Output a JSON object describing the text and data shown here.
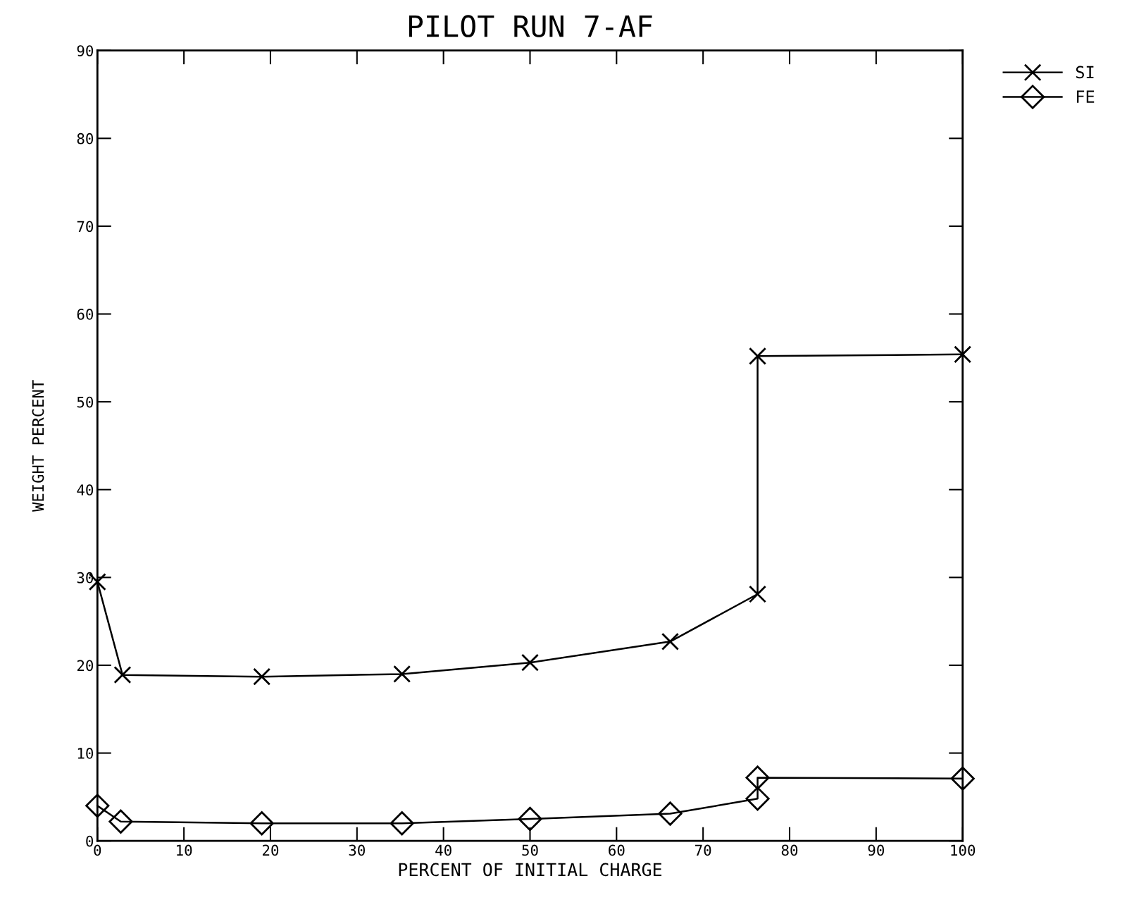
{
  "chart_data": {
    "type": "line",
    "title": "PILOT RUN 7-AF",
    "xlabel": "PERCENT OF INITIAL CHARGE",
    "ylabel": "WEIGHT PERCENT",
    "series": [
      {
        "name": "SI",
        "color": "#000000",
        "marker": "cross",
        "x": [
          0,
          2.9,
          19.0,
          35.2,
          50.0,
          66.2,
          76.3,
          76.3,
          100
        ],
        "values": [
          29.5,
          18.9,
          18.7,
          19.0,
          20.3,
          22.7,
          28.1,
          55.2,
          55.4
        ]
      },
      {
        "name": "FE",
        "color": "#000000",
        "marker": "diamond",
        "x": [
          0,
          2.7,
          19.0,
          35.2,
          50.0,
          66.2,
          76.3,
          76.3,
          100
        ],
        "values": [
          4.0,
          2.2,
          2.0,
          2.0,
          2.5,
          3.1,
          4.8,
          7.2,
          7.1
        ]
      }
    ],
    "xlim": [
      0,
      100
    ],
    "xticks": [
      0,
      10,
      20,
      30,
      40,
      50,
      60,
      70,
      80,
      90,
      100
    ],
    "ylim": [
      0,
      90
    ],
    "yticks": [
      0,
      10,
      20,
      30,
      40,
      50,
      60,
      70,
      80,
      90
    ],
    "grid": false,
    "legend": "top right",
    "line_style": "solid"
  }
}
